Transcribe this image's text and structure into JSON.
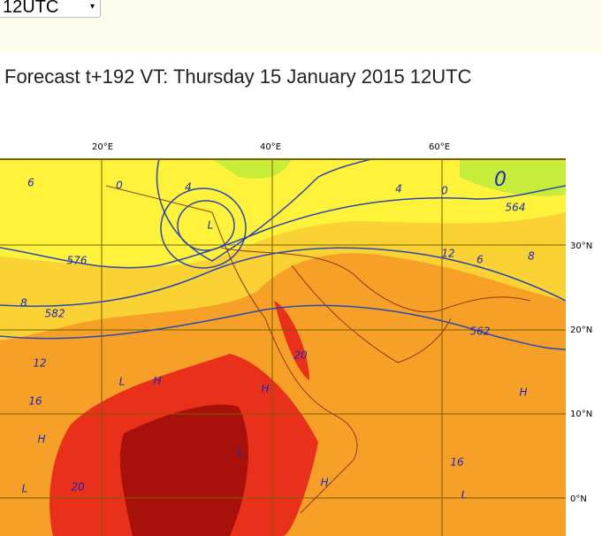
{
  "selector": {
    "value": "12UTC"
  },
  "title": "Forecast t+192 VT: Thursday 15 January 2015 12UTC",
  "map": {
    "lon_labels": [
      "20°E",
      "40°E",
      "60°E"
    ],
    "lat_labels": [
      "30°N",
      "20°N",
      "10°N",
      "0°N"
    ],
    "contour_labels": [
      "6",
      "0",
      "4",
      "L",
      "576",
      "582",
      "8",
      "564",
      "0",
      "4",
      "0",
      "12",
      "6",
      "8",
      "562",
      "20",
      "12",
      "16",
      "H",
      "20",
      "16",
      "L",
      "L",
      "H",
      "H",
      "H",
      "L",
      "H",
      "L"
    ]
  }
}
